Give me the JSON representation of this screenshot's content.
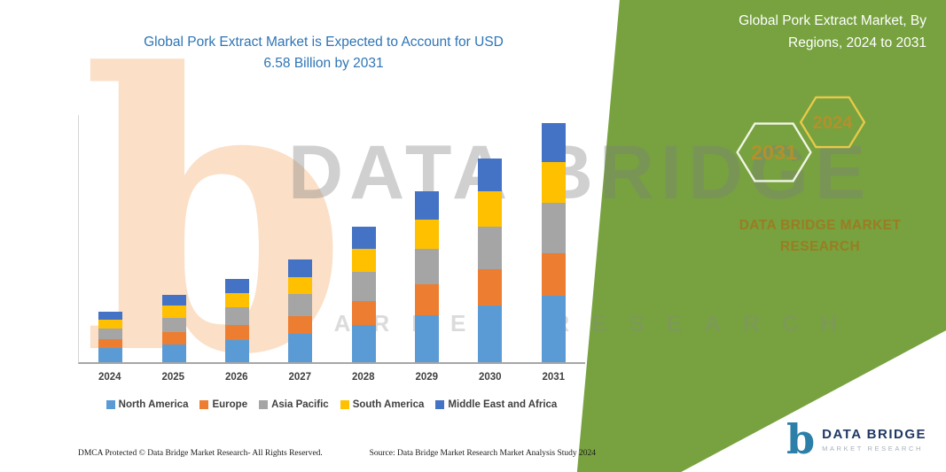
{
  "header": {
    "green_panel": {
      "title_lines": [
        "Global Pork Extract Market, By",
        "Regions, 2024 to 2031"
      ],
      "hexagon_left": "2031",
      "hexagon_right": "2024",
      "brand_lines": [
        "DATA BRIDGE MARKET",
        "RESEARCH"
      ]
    }
  },
  "chart": {
    "title_lines": [
      "Global Pork Extract Market is Expected to Account for USD",
      "6.58 Billion by 2031"
    ]
  },
  "chart_data": {
    "type": "bar",
    "stacked": true,
    "title": "Global Pork Extract Market is Expected to Account for USD 6.58 Billion by 2031",
    "categories": [
      "2024",
      "2025",
      "2026",
      "2027",
      "2028",
      "2029",
      "2030",
      "2031"
    ],
    "series": [
      {
        "name": "North America",
        "color": "#5B9BD5",
        "values": [
          0.38,
          0.5,
          0.62,
          0.77,
          1.02,
          1.29,
          1.55,
          1.82
        ]
      },
      {
        "name": "Europe",
        "color": "#ED7D31",
        "values": [
          0.25,
          0.34,
          0.41,
          0.51,
          0.67,
          0.85,
          1.01,
          1.18
        ]
      },
      {
        "name": "Asia Pacific",
        "color": "#A5A5A5",
        "values": [
          0.3,
          0.39,
          0.48,
          0.59,
          0.79,
          0.99,
          1.18,
          1.38
        ]
      },
      {
        "name": "South America",
        "color": "#FFC000",
        "values": [
          0.24,
          0.32,
          0.39,
          0.48,
          0.64,
          0.8,
          0.96,
          1.12
        ]
      },
      {
        "name": "Middle East and Africa",
        "color": "#4472C4",
        "values": [
          0.23,
          0.31,
          0.39,
          0.47,
          0.62,
          0.77,
          0.92,
          1.08
        ]
      }
    ],
    "ylim": [
      0,
      6.8
    ],
    "unit_hint": "USD Billion",
    "grid": false,
    "legend_position": "bottom"
  },
  "watermark": {
    "mark": "b",
    "line1": "DATA BRIDGE",
    "line2": "MARKET RESEARCH"
  },
  "footer": {
    "dmca": "DMCA Protected © Data Bridge Market Research-  All Rights Reserved.",
    "source": "Source: Data Bridge Market Research  Market Analysis Study 2024"
  },
  "logo": {
    "mark": "b",
    "title": "DATA BRIDGE",
    "subtitle": "MARKET RESEARCH"
  },
  "colors": {
    "panel_green": "#77A23F",
    "title_blue": "#2E75B6",
    "hexagon_yellow": "#E9C94A",
    "brand_gold": "#9A7D22",
    "logo_navy": "#1F3864",
    "logo_teal": "#2B7FA8",
    "watermark_orange": "#F2994A"
  }
}
